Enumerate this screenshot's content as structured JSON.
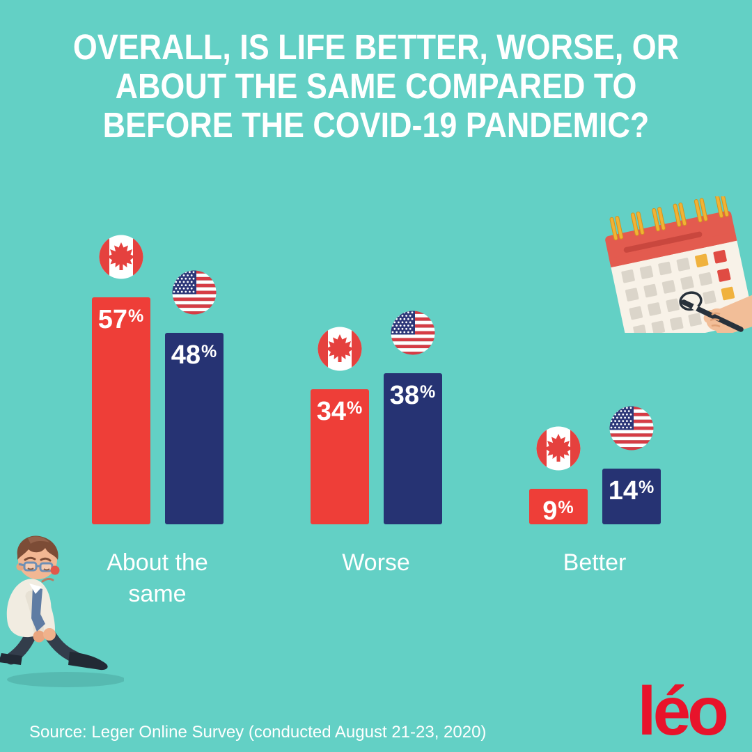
{
  "title": {
    "lines": [
      "OVERALL, IS LIFE BETTER, WORSE, OR",
      "ABOUT THE SAME COMPARED TO",
      "BEFORE THE COVID-19 PANDEMIC?"
    ]
  },
  "source": "Source: Leger Online Survey (conducted August 21-23, 2020)",
  "logo_text": "léo",
  "colors": {
    "background": "#63D0C5",
    "canada_bar": "#EE3E38",
    "usa_bar": "#263373",
    "text": "#FFFFFF",
    "logo_red": "#E8132B"
  },
  "chart_data": {
    "type": "bar",
    "categories": [
      "About the same",
      "Worse",
      "Better"
    ],
    "series": [
      {
        "name": "Canada",
        "icon": "canada-flag-icon",
        "color": "#EE3E38",
        "values": [
          57,
          34,
          9
        ]
      },
      {
        "name": "USA",
        "icon": "usa-flag-icon",
        "color": "#263373",
        "values": [
          48,
          38,
          14
        ]
      }
    ],
    "value_suffix": "%",
    "value_labels_shown": [
      "57%",
      "48%",
      "34%",
      "38%",
      "9%",
      "14%"
    ],
    "ylim": [
      0,
      60
    ],
    "grid": false,
    "axis_labels": "none",
    "legend": "flag icons above each bar"
  },
  "illustrations": {
    "calendar": "calendar with hand circling a date",
    "sad_man": "dejected businessman walking"
  }
}
